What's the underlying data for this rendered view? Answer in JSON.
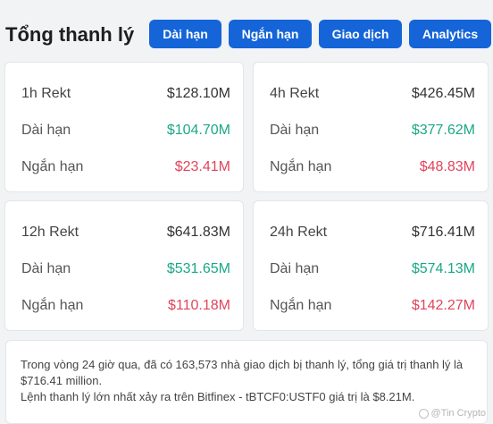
{
  "header": {
    "title": "Tổng thanh lý",
    "tabs": [
      "Dài hạn",
      "Ngắn hạn",
      "Giao dịch",
      "Analytics"
    ]
  },
  "cards": [
    {
      "title": "1h Rekt",
      "total": "$128.10M",
      "long_label": "Dài hạn",
      "long": "$104.70M",
      "short_label": "Ngắn hạn",
      "short": "$23.41M"
    },
    {
      "title": "4h Rekt",
      "total": "$426.45M",
      "long_label": "Dài hạn",
      "long": "$377.62M",
      "short_label": "Ngắn hạn",
      "short": "$48.83M"
    },
    {
      "title": "12h Rekt",
      "total": "$641.83M",
      "long_label": "Dài hạn",
      "long": "$531.65M",
      "short_label": "Ngắn hạn",
      "short": "$110.18M"
    },
    {
      "title": "24h Rekt",
      "total": "$716.41M",
      "long_label": "Dài hạn",
      "long": "$574.13M",
      "short_label": "Ngắn hạn",
      "short": "$142.27M"
    }
  ],
  "summary": {
    "line1": "Trong vòng 24 giờ qua, đã có 163,573 nhà giao dịch bị thanh lý, tổng giá trị thanh lý là $716.41 million.",
    "line2": "Lệnh thanh lý lớn nhất xảy ra trên Bitfinex - tBTCF0:USTF0 giá trị là $8.21M."
  },
  "watermark": "@Tin Crypto",
  "colors": {
    "tab": "#1565d8",
    "long": "#1aa886",
    "short": "#e0455c"
  }
}
